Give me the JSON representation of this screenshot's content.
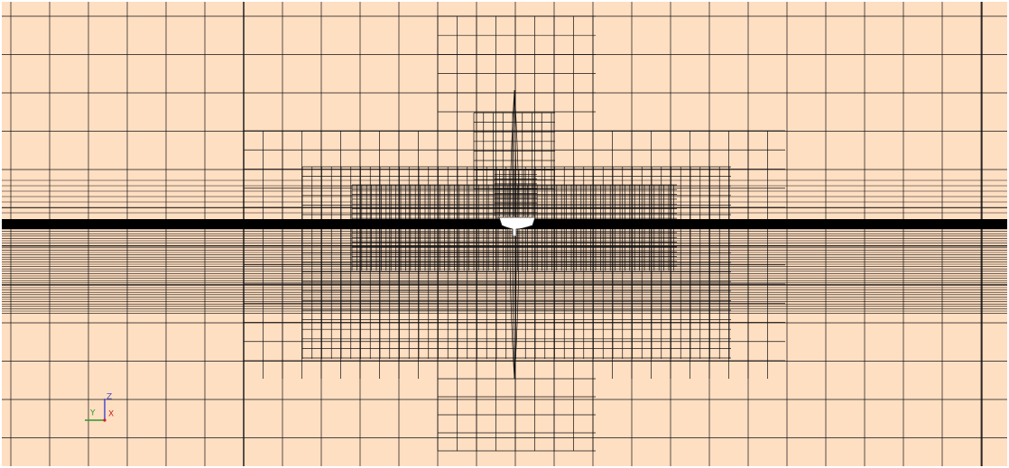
{
  "axes_triad": {
    "z_label": "Z",
    "y_label": "Y",
    "x_label": "X"
  }
}
